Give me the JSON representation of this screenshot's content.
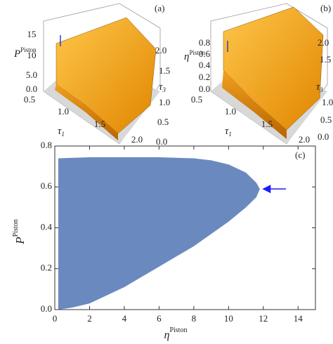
{
  "chart_data": [
    {
      "type": "surface",
      "title": "(a)",
      "zlabel": "P",
      "zlabel_sup": "Piston",
      "xlabel": "τ",
      "xlabel_sub": "1",
      "ylabel": "τ",
      "ylabel_sub": "3",
      "zticks": [
        {
          "value": 0,
          "label": "0.0"
        },
        {
          "value": 5,
          "label": "5.0"
        },
        10,
        15
      ],
      "xticks": [
        0.5,
        {
          "value": 1,
          "label": "1.0"
        },
        1.5,
        {
          "value": 2,
          "label": "2.0"
        }
      ],
      "yticks": [
        {
          "value": 0,
          "label": "0.0"
        },
        0.5,
        {
          "value": 1,
          "label": "1.0"
        },
        1.5,
        {
          "value": 2,
          "label": "2.0"
        }
      ]
    },
    {
      "type": "surface",
      "title": "(b)",
      "zlabel": "η",
      "zlabel_sup": "Piston",
      "xlabel": "τ",
      "xlabel_sub": "1",
      "ylabel": "τ",
      "ylabel_sub": "3",
      "zticks": [
        {
          "value": 0,
          "label": "0.0"
        },
        0.2,
        0.4,
        0.6,
        0.8
      ],
      "xticks": [
        0.5,
        {
          "value": 1,
          "label": "1.0"
        },
        1.5,
        {
          "value": 2,
          "label": "2.0"
        }
      ],
      "yticks": [
        {
          "value": 0,
          "label": "0.0"
        },
        0.5,
        {
          "value": 1,
          "label": "1.0"
        },
        1.5,
        {
          "value": 2,
          "label": "2.0"
        }
      ]
    },
    {
      "type": "scatter",
      "title": "(c)",
      "xlabel": "η",
      "xlabel_sup": "Piston",
      "ylabel": "P",
      "ylabel_sup": "Piston",
      "color": "#5a7db8",
      "x": [
        0.2,
        0.2,
        2,
        4,
        6,
        8,
        9,
        10,
        11,
        11.6,
        11.8,
        11.6,
        11,
        10,
        9,
        8,
        7,
        6,
        5,
        4,
        3,
        2,
        1
      ],
      "y": [
        0,
        0.74,
        0.745,
        0.745,
        0.745,
        0.74,
        0.73,
        0.71,
        0.67,
        0.62,
        0.59,
        0.55,
        0.5,
        0.43,
        0.37,
        0.31,
        0.26,
        0.21,
        0.16,
        0.11,
        0.07,
        0.03,
        0.01
      ],
      "arrow": {
        "color": "#1a1aff",
        "x": [
          13.3,
          12
        ],
        "y": [
          0.59,
          0.59
        ]
      },
      "xlim": [
        0,
        15
      ],
      "xticks": [
        0,
        2,
        4,
        6,
        8,
        10,
        12,
        14
      ],
      "ylim": [
        0,
        0.8
      ],
      "yticks": [
        {
          "value": 0,
          "label": "0.0"
        },
        0.2,
        0.4,
        0.6,
        0.8
      ]
    }
  ]
}
